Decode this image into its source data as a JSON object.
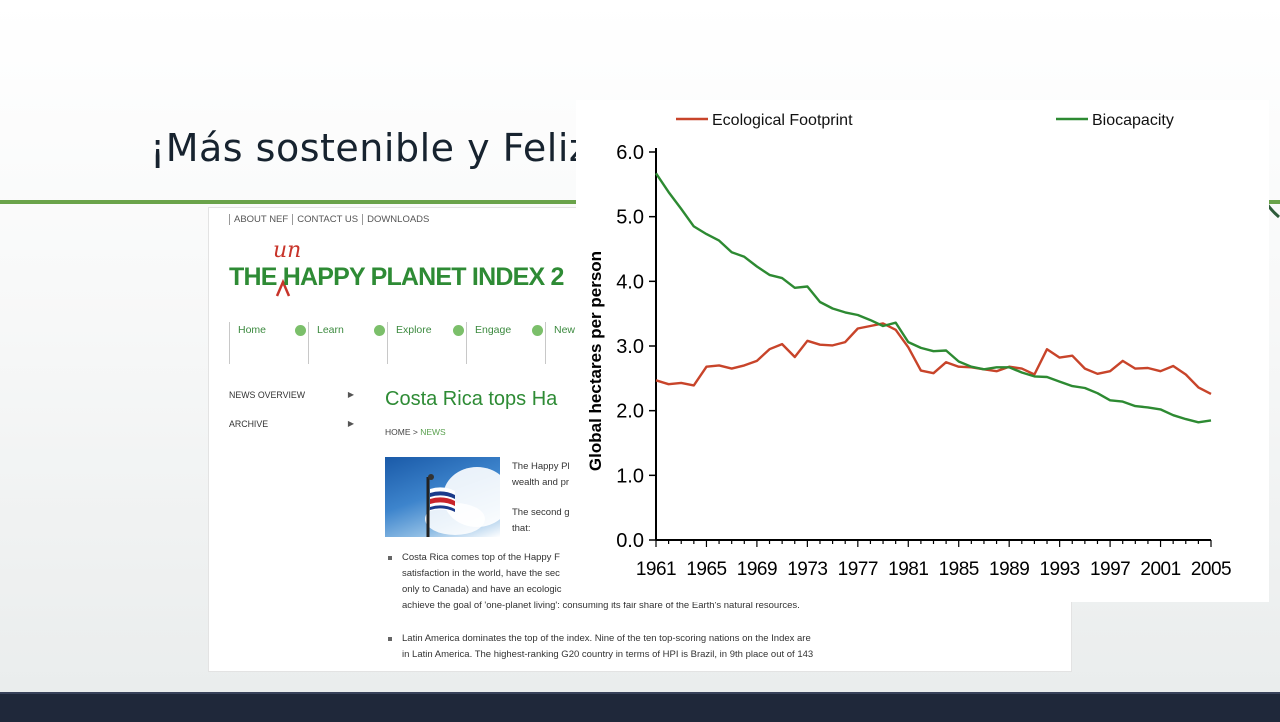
{
  "slide": {
    "title": "¡Más sostenible y Feliz!",
    "accent_color": "#6aa34a",
    "footer_color": "#1f283a"
  },
  "webpage": {
    "top_nav": [
      "ABOUT NEF",
      "CONTACT US",
      "DOWNLOADS"
    ],
    "logo": {
      "superscript": "un",
      "text": "THE HAPPY PLANET INDEX 2"
    },
    "main_nav": [
      "Home",
      "Learn",
      "Explore",
      "Engage",
      "New"
    ],
    "side_menu": [
      "NEWS OVERVIEW",
      "ARCHIVE"
    ],
    "article_title": "Costa Rica tops Ha",
    "breadcrumb": {
      "home": "HOME",
      "separator": " > ",
      "current": "NEWS"
    },
    "paragraph1": [
      "The Happy Pl",
      "wealth and pr"
    ],
    "paragraph2": [
      "The second g",
      "that:"
    ],
    "bullet1": [
      "Costa Rica comes top of the Happy F",
      "satisfaction in the world, have the sec",
      "only to Canada) and have an ecologic",
      "achieve the goal of 'one-planet living': consuming its fair share of the Earth's natural resources."
    ],
    "bullet2": [
      "Latin America dominates the top of the index. Nine of the ten top-scoring nations on the Index are",
      "in Latin America. The highest-ranking G20 country in terms of HPI is Brazil, in 9th place out of 143",
      "..."
    ]
  },
  "chart_data": {
    "type": "line",
    "title": "",
    "xlabel": "",
    "ylabel": "Global hectares per person",
    "xlim": [
      1961,
      2005
    ],
    "ylim": [
      0,
      6
    ],
    "x_ticks": [
      "1961",
      "1965",
      "1969",
      "1973",
      "1977",
      "1981",
      "1985",
      "1989",
      "1993",
      "1997",
      "2001",
      "2005"
    ],
    "y_ticks": [
      "0.0",
      "1.0",
      "2.0",
      "3.0",
      "4.0",
      "5.0",
      "6.0"
    ],
    "legend_position": "top",
    "grid": false,
    "series": [
      {
        "name": "Ecological Footprint",
        "color": "#c8442a",
        "x": [
          1961,
          1962,
          1963,
          1964,
          1965,
          1966,
          1967,
          1968,
          1969,
          1970,
          1971,
          1972,
          1973,
          1974,
          1975,
          1976,
          1977,
          1978,
          1979,
          1980,
          1981,
          1982,
          1983,
          1984,
          1985,
          1986,
          1987,
          1988,
          1989,
          1990,
          1991,
          1992,
          1993,
          1994,
          1995,
          1996,
          1997,
          1998,
          1999,
          2000,
          2001,
          2002,
          2003,
          2004,
          2005
        ],
        "values": [
          2.47,
          2.41,
          2.43,
          2.39,
          2.68,
          2.7,
          2.65,
          2.7,
          2.77,
          2.95,
          3.03,
          2.83,
          3.08,
          3.02,
          3.01,
          3.06,
          3.27,
          3.31,
          3.35,
          3.25,
          2.98,
          2.62,
          2.58,
          2.75,
          2.68,
          2.67,
          2.64,
          2.61,
          2.68,
          2.65,
          2.56,
          2.95,
          2.82,
          2.85,
          2.65,
          2.57,
          2.61,
          2.77,
          2.65,
          2.66,
          2.61,
          2.69,
          2.56,
          2.36,
          2.26
        ]
      },
      {
        "name": "Biocapacity",
        "color": "#2d8a32",
        "x": [
          1961,
          1962,
          1963,
          1964,
          1965,
          1966,
          1967,
          1968,
          1969,
          1970,
          1971,
          1972,
          1973,
          1974,
          1975,
          1976,
          1977,
          1978,
          1979,
          1980,
          1981,
          1982,
          1983,
          1984,
          1985,
          1986,
          1987,
          1988,
          1989,
          1990,
          1991,
          1992,
          1993,
          1994,
          1995,
          1996,
          1997,
          1998,
          1999,
          2000,
          2001,
          2002,
          2003,
          2004,
          2005
        ],
        "values": [
          5.67,
          5.38,
          5.12,
          4.85,
          4.73,
          4.63,
          4.45,
          4.38,
          4.23,
          4.1,
          4.05,
          3.9,
          3.92,
          3.68,
          3.58,
          3.52,
          3.48,
          3.4,
          3.31,
          3.36,
          3.06,
          2.97,
          2.92,
          2.93,
          2.76,
          2.68,
          2.64,
          2.67,
          2.67,
          2.59,
          2.53,
          2.52,
          2.45,
          2.38,
          2.35,
          2.27,
          2.16,
          2.14,
          2.07,
          2.05,
          2.02,
          1.93,
          1.87,
          1.82,
          1.85
        ]
      }
    ]
  }
}
